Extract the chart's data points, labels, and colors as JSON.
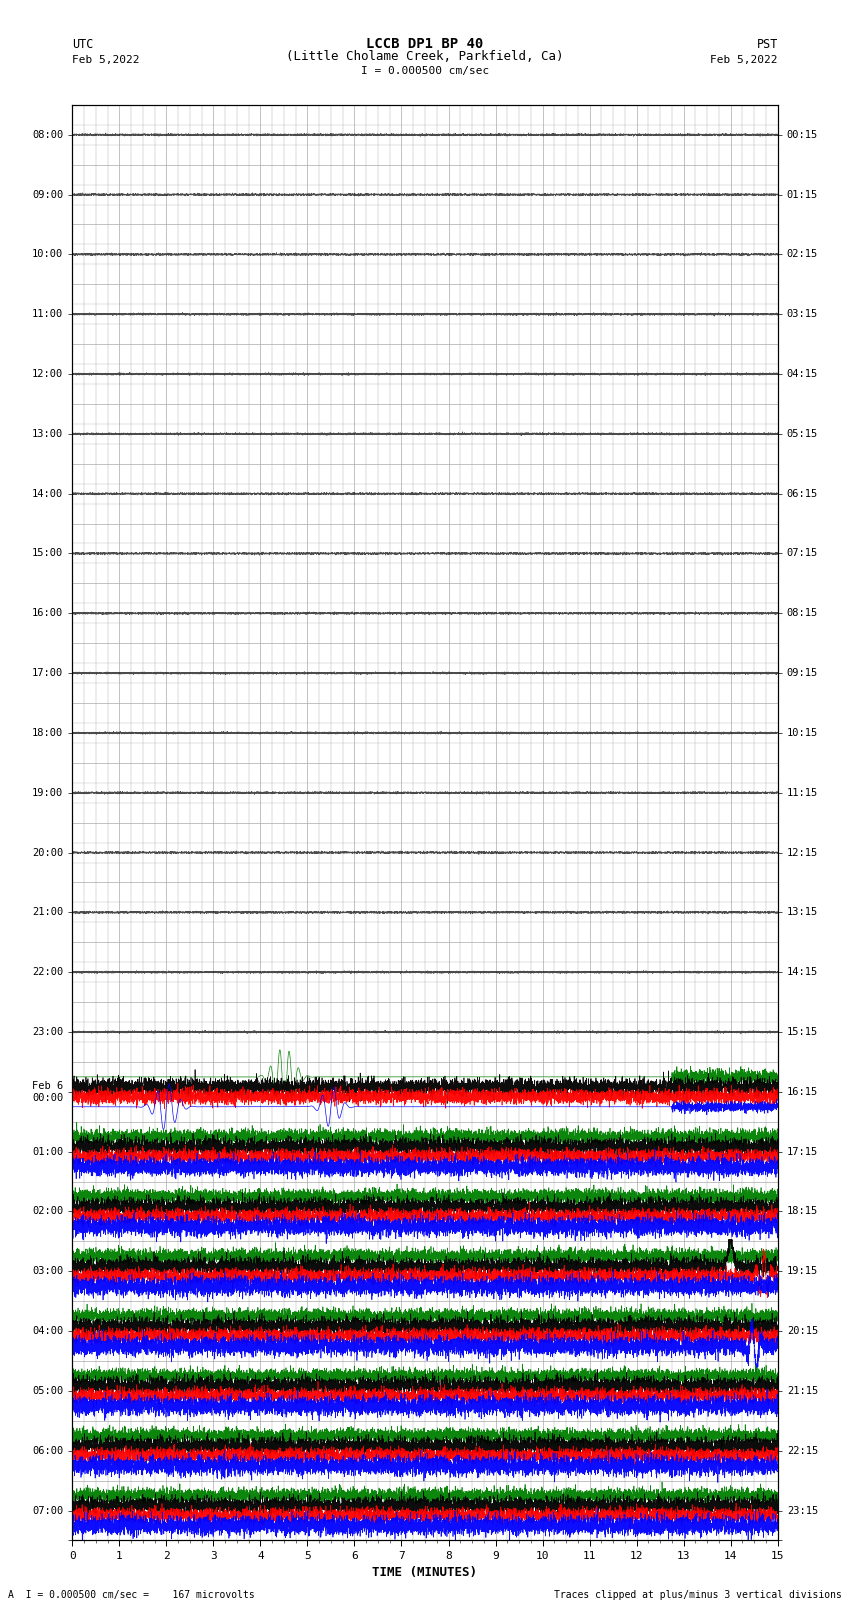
{
  "title_line1": "LCCB DP1 BP 40",
  "title_line2": "(Little Cholame Creek, Parkfield, Ca)",
  "scale_label": "I = 0.000500 cm/sec",
  "utc_label": "UTC",
  "utc_date": "Feb 5,2022",
  "pst_label": "PST",
  "pst_date": "Feb 5,2022",
  "xlabel": "TIME (MINUTES)",
  "bottom_left": "A  I = 0.000500 cm/sec =    167 microvolts",
  "bottom_right": "Traces clipped at plus/minus 3 vertical divisions",
  "utc_times": [
    "08:00",
    "09:00",
    "10:00",
    "11:00",
    "12:00",
    "13:00",
    "14:00",
    "15:00",
    "16:00",
    "17:00",
    "18:00",
    "19:00",
    "20:00",
    "21:00",
    "22:00",
    "23:00",
    "Feb 6\n00:00",
    "01:00",
    "02:00",
    "03:00",
    "04:00",
    "05:00",
    "06:00",
    "07:00",
    ""
  ],
  "pst_times": [
    "00:15",
    "01:15",
    "02:15",
    "03:15",
    "04:15",
    "05:15",
    "06:15",
    "07:15",
    "08:15",
    "09:15",
    "10:15",
    "11:15",
    "12:15",
    "13:15",
    "14:15",
    "15:15",
    "16:15",
    "17:15",
    "18:15",
    "19:15",
    "20:15",
    "21:15",
    "22:15",
    "23:15",
    ""
  ],
  "n_rows": 24,
  "quiet_rows": 16,
  "colors_cycle": [
    "#008000",
    "#000000",
    "#ff0000",
    "#0000ff"
  ],
  "bg_color": "#ffffff",
  "grid_color": "#aaaaaa",
  "noise_seed": 42
}
